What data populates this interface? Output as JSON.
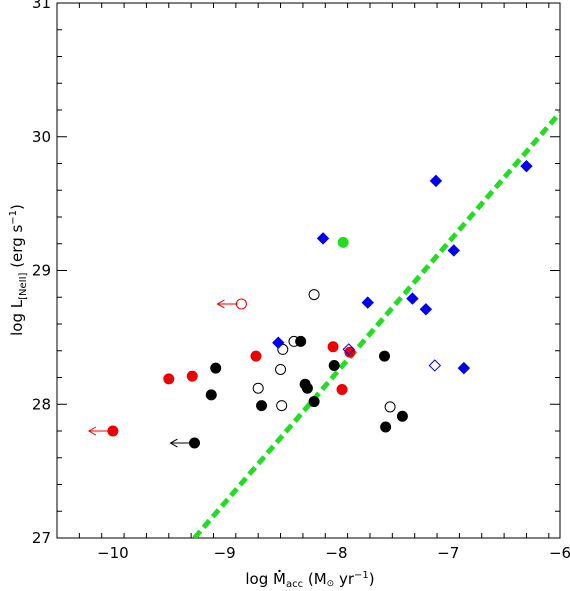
{
  "chart_data": {
    "type": "scatter",
    "title": "",
    "xlabel": {
      "prefix": "log ",
      "main": "M",
      "sub": "acc",
      "units_pre": " (M",
      "units_sun": "⊙",
      "units_post": " yr",
      "units_sup": "−1",
      "units_close": ")"
    },
    "ylabel": {
      "prefix": "log L",
      "sub": "[NeII]",
      "units_pre": " (erg s",
      "units_sup": "−1",
      "units_close": ")"
    },
    "xlim": [
      -10.5,
      -6
    ],
    "ylim": [
      27,
      31
    ],
    "x_ticks": [
      -10,
      -9,
      -8,
      -7,
      -6
    ],
    "x_tick_labels": [
      "−10",
      "−9",
      "−8",
      "−7",
      "−6"
    ],
    "y_ticks": [
      27,
      28,
      29,
      30,
      31
    ],
    "y_tick_labels": [
      "27",
      "28",
      "29",
      "30",
      "31"
    ],
    "x_minor_step": 0.2,
    "y_minor_step": 0.2,
    "grid": false,
    "fit_line": {
      "color": "#22dd22",
      "x": [
        -9.27,
        -6.0
      ],
      "y": [
        27.0,
        30.18
      ]
    },
    "series": [
      {
        "marker": "circle",
        "fill": true,
        "color": "#000000",
        "points": [
          [
            -9.08,
            28.27
          ],
          [
            -9.12,
            28.07
          ],
          [
            -8.67,
            27.99
          ],
          [
            -8.32,
            28.47
          ],
          [
            -8.28,
            28.15
          ],
          [
            -8.26,
            28.12
          ],
          [
            -8.2,
            28.02
          ],
          [
            -8.02,
            28.29
          ],
          [
            -7.57,
            28.36
          ],
          [
            -7.41,
            27.91
          ],
          [
            -7.56,
            27.83
          ],
          [
            -9.27,
            27.71
          ]
        ]
      },
      {
        "marker": "circle",
        "fill": false,
        "color": "#000000",
        "points": [
          [
            -8.7,
            28.12
          ],
          [
            -8.48,
            28.41
          ],
          [
            -8.5,
            28.26
          ],
          [
            -8.49,
            27.99
          ],
          [
            -8.38,
            28.47
          ],
          [
            -8.2,
            28.82
          ],
          [
            -7.52,
            27.98
          ]
        ]
      },
      {
        "marker": "circle",
        "fill": true,
        "color": "#ee0000",
        "points": [
          [
            -10.0,
            27.8
          ],
          [
            -9.5,
            28.19
          ],
          [
            -9.29,
            28.21
          ],
          [
            -8.72,
            28.36
          ],
          [
            -8.03,
            28.43
          ],
          [
            -7.88,
            28.39
          ],
          [
            -7.95,
            28.11
          ]
        ]
      },
      {
        "marker": "circle",
        "fill": false,
        "color": "#ee0000",
        "points": [
          [
            -8.85,
            28.75
          ]
        ]
      },
      {
        "marker": "circle",
        "fill": true,
        "color": "#22dd22",
        "points": [
          [
            -7.94,
            29.21
          ]
        ]
      },
      {
        "marker": "diamond",
        "fill": true,
        "color": "#0000ee",
        "points": [
          [
            -8.12,
            29.24
          ],
          [
            -7.72,
            28.76
          ],
          [
            -7.32,
            28.79
          ],
          [
            -7.2,
            28.71
          ],
          [
            -7.11,
            29.67
          ],
          [
            -6.95,
            29.15
          ],
          [
            -6.86,
            28.27
          ],
          [
            -6.3,
            29.78
          ],
          [
            -8.52,
            28.46
          ]
        ]
      },
      {
        "marker": "diamond",
        "fill": false,
        "color": "#0000ee",
        "points": [
          [
            -7.89,
            28.41
          ],
          [
            -7.12,
            28.29
          ]
        ]
      }
    ],
    "upper_limits": [
      {
        "color": "#ee0000",
        "x": -10.0,
        "y": 27.8
      },
      {
        "color": "#000000",
        "x": -9.27,
        "y": 27.71
      },
      {
        "color": "#ee0000",
        "x": -8.85,
        "y": 28.75
      }
    ]
  }
}
